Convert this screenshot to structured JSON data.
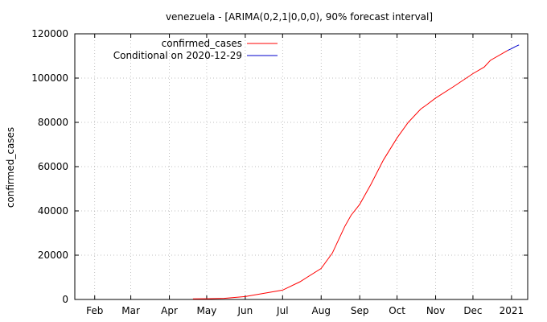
{
  "chart_data": {
    "type": "line",
    "title": "venezuela -  [ARIMA(0,2,1|0,0,0), 90% forecast interval]",
    "xlabel": "",
    "ylabel": "confirmed_cases",
    "ylim": [
      0,
      120000
    ],
    "yticks": [
      0,
      20000,
      40000,
      60000,
      80000,
      100000,
      120000
    ],
    "xlim": [
      "2020-01-16",
      "2021-01-14"
    ],
    "xticks": [
      {
        "date": "2020-02-01",
        "label": "Feb"
      },
      {
        "date": "2020-03-01",
        "label": "Mar"
      },
      {
        "date": "2020-04-01",
        "label": "Apr"
      },
      {
        "date": "2020-05-01",
        "label": "May"
      },
      {
        "date": "2020-06-01",
        "label": "Jun"
      },
      {
        "date": "2020-07-01",
        "label": "Jul"
      },
      {
        "date": "2020-08-01",
        "label": "Aug"
      },
      {
        "date": "2020-09-01",
        "label": "Sep"
      },
      {
        "date": "2020-10-01",
        "label": "Oct"
      },
      {
        "date": "2020-11-01",
        "label": "Nov"
      },
      {
        "date": "2020-12-01",
        "label": "Dec"
      },
      {
        "date": "2021-01-01",
        "label": "2021"
      }
    ],
    "grid": true,
    "legend_position": "top-left",
    "series": [
      {
        "name": "confirmed_cases",
        "color": "#ff0000",
        "points": [
          [
            "2020-04-20",
            250
          ],
          [
            "2020-05-01",
            330
          ],
          [
            "2020-05-15",
            500
          ],
          [
            "2020-06-01",
            1300
          ],
          [
            "2020-06-15",
            2700
          ],
          [
            "2020-07-01",
            4200
          ],
          [
            "2020-07-15",
            8000
          ],
          [
            "2020-08-01",
            14000
          ],
          [
            "2020-08-10",
            21000
          ],
          [
            "2020-08-20",
            33000
          ],
          [
            "2020-08-25",
            38000
          ],
          [
            "2020-09-01",
            43000
          ],
          [
            "2020-09-10",
            52000
          ],
          [
            "2020-09-20",
            63000
          ],
          [
            "2020-10-01",
            73000
          ],
          [
            "2020-10-10",
            80000
          ],
          [
            "2020-10-20",
            86000
          ],
          [
            "2020-10-25",
            88000
          ],
          [
            "2020-11-01",
            91000
          ],
          [
            "2020-11-15",
            96000
          ],
          [
            "2020-12-01",
            102000
          ],
          [
            "2020-12-10",
            105000
          ],
          [
            "2020-12-15",
            108000
          ],
          [
            "2020-12-29",
            112500
          ]
        ]
      },
      {
        "name": "Conditional on 2020-12-29",
        "color": "#0000cc",
        "points": [
          [
            "2020-12-29",
            112500
          ],
          [
            "2021-01-01",
            113300
          ],
          [
            "2021-01-04",
            114200
          ],
          [
            "2021-01-07",
            115000
          ]
        ]
      }
    ]
  }
}
